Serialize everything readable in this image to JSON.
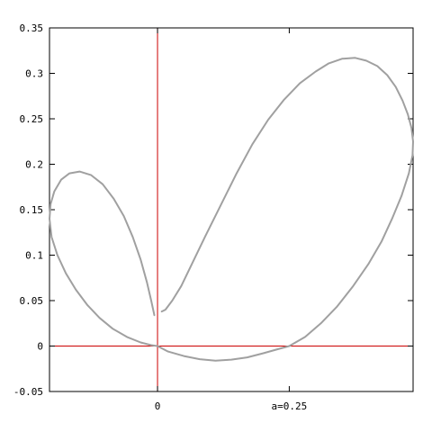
{
  "chart_data": {
    "type": "line",
    "title": "",
    "xlabel": "",
    "ylabel": "",
    "xlim": [
      -0.205,
      0.485
    ],
    "ylim": [
      -0.05,
      0.35
    ],
    "grid": false,
    "legend": "none",
    "y_ticks": [
      {
        "value": 0.35,
        "label": "0.35"
      },
      {
        "value": 0.3,
        "label": "0.3"
      },
      {
        "value": 0.25,
        "label": "0.25"
      },
      {
        "value": 0.2,
        "label": "0.2"
      },
      {
        "value": 0.15,
        "label": "0.15"
      },
      {
        "value": 0.1,
        "label": "0.1"
      },
      {
        "value": 0.05,
        "label": "0.05"
      },
      {
        "value": 0,
        "label": "0"
      },
      {
        "value": -0.05,
        "label": "-0.05"
      }
    ],
    "x_ticks": [
      {
        "value": 0,
        "label": "0"
      },
      {
        "value": 0.25,
        "label": "a=0.25"
      }
    ],
    "reference_lines": [
      {
        "axis": "x",
        "value": 0,
        "color": "#cc0000"
      },
      {
        "axis": "y",
        "value": 0,
        "color": "#cc0000"
      }
    ],
    "series": [
      {
        "color": "#a0a0a0",
        "points": [
          [
            -0.006,
            0.034
          ],
          [
            -0.012,
            0.05
          ],
          [
            -0.02,
            0.07
          ],
          [
            -0.032,
            0.095
          ],
          [
            -0.047,
            0.12
          ],
          [
            -0.064,
            0.143
          ],
          [
            -0.083,
            0.162
          ],
          [
            -0.104,
            0.178
          ],
          [
            -0.126,
            0.188
          ],
          [
            -0.148,
            0.192
          ],
          [
            -0.167,
            0.19
          ],
          [
            -0.183,
            0.183
          ],
          [
            -0.196,
            0.17
          ],
          [
            -0.203,
            0.156
          ],
          [
            -0.205,
            0.14
          ],
          [
            -0.201,
            0.12
          ],
          [
            -0.19,
            0.1
          ],
          [
            -0.174,
            0.08
          ],
          [
            -0.155,
            0.062
          ],
          [
            -0.133,
            0.045
          ],
          [
            -0.11,
            0.031
          ],
          [
            -0.085,
            0.019
          ],
          [
            -0.058,
            0.01
          ],
          [
            -0.032,
            0.004
          ],
          [
            -0.012,
            0.001
          ],
          [
            0,
            0
          ],
          [
            0.02,
            -0.006
          ],
          [
            0.05,
            -0.011
          ],
          [
            0.08,
            -0.0145
          ],
          [
            0.11,
            -0.016
          ],
          [
            0.14,
            -0.015
          ],
          [
            0.17,
            -0.0125
          ],
          [
            0.2,
            -0.008
          ],
          [
            0.225,
            -0.004
          ],
          [
            0.25,
            0
          ],
          [
            0.28,
            0.01
          ],
          [
            0.31,
            0.025
          ],
          [
            0.34,
            0.043
          ],
          [
            0.37,
            0.065
          ],
          [
            0.4,
            0.09
          ],
          [
            0.425,
            0.115
          ],
          [
            0.445,
            0.14
          ],
          [
            0.463,
            0.165
          ],
          [
            0.477,
            0.19
          ],
          [
            0.484,
            0.21
          ],
          [
            0.485,
            0.225
          ],
          [
            0.482,
            0.24
          ],
          [
            0.475,
            0.255
          ],
          [
            0.465,
            0.27
          ],
          [
            0.452,
            0.285
          ],
          [
            0.436,
            0.298
          ],
          [
            0.417,
            0.308
          ],
          [
            0.396,
            0.314
          ],
          [
            0.375,
            0.317
          ],
          [
            0.35,
            0.316
          ],
          [
            0.325,
            0.311
          ],
          [
            0.3,
            0.302
          ],
          [
            0.27,
            0.289
          ],
          [
            0.24,
            0.271
          ],
          [
            0.21,
            0.249
          ],
          [
            0.18,
            0.222
          ],
          [
            0.15,
            0.19
          ],
          [
            0.12,
            0.155
          ],
          [
            0.09,
            0.12
          ],
          [
            0.065,
            0.09
          ],
          [
            0.045,
            0.066
          ],
          [
            0.028,
            0.05
          ],
          [
            0.015,
            0.04
          ],
          [
            0.008,
            0.038
          ]
        ]
      }
    ]
  }
}
